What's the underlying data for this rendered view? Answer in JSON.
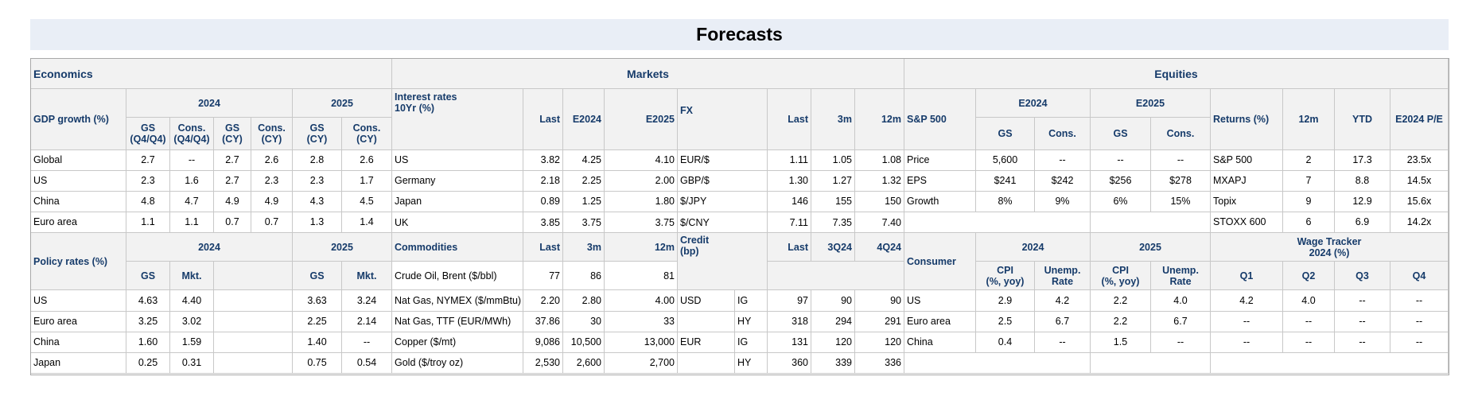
{
  "title": "Forecasts",
  "economics": {
    "section": "Economics",
    "gdp": {
      "label": "GDP growth (%)",
      "year1": "2024",
      "year2": "2025",
      "cols": [
        "GS\n(Q4/Q4)",
        "Cons.\n(Q4/Q4)",
        "GS\n(CY)",
        "Cons.\n(CY)",
        "GS\n(CY)",
        "Cons.\n(CY)"
      ],
      "rows": [
        {
          "name": "Global",
          "v": [
            "2.7",
            "--",
            "2.7",
            "2.6",
            "2.8",
            "2.6"
          ]
        },
        {
          "name": "US",
          "v": [
            "2.3",
            "1.6",
            "2.7",
            "2.3",
            "2.3",
            "1.7"
          ]
        },
        {
          "name": "China",
          "v": [
            "4.8",
            "4.7",
            "4.9",
            "4.9",
            "4.3",
            "4.5"
          ]
        },
        {
          "name": "Euro area",
          "v": [
            "1.1",
            "1.1",
            "0.7",
            "0.7",
            "1.3",
            "1.4"
          ]
        }
      ]
    },
    "policy": {
      "label": "Policy rates (%)",
      "year1": "2024",
      "year2": "2025",
      "cols": [
        "GS",
        "Mkt.",
        "GS",
        "Mkt."
      ],
      "rows": [
        {
          "name": "US",
          "v": [
            "4.63",
            "4.40",
            "3.63",
            "3.24"
          ]
        },
        {
          "name": "Euro area",
          "v": [
            "3.25",
            "3.02",
            "2.25",
            "2.14"
          ]
        },
        {
          "name": "China",
          "v": [
            "1.60",
            "1.59",
            "1.40",
            "--"
          ]
        },
        {
          "name": "Japan",
          "v": [
            "0.25",
            "0.31",
            "0.75",
            "0.54"
          ]
        }
      ]
    }
  },
  "markets": {
    "section": "Markets",
    "rates": {
      "label": "Interest rates\n10Yr (%)",
      "cols": [
        "Last",
        "E2024",
        "E2025"
      ],
      "rows": [
        {
          "name": "US",
          "v": [
            "3.82",
            "4.25",
            "4.10"
          ]
        },
        {
          "name": "Germany",
          "v": [
            "2.18",
            "2.25",
            "2.00"
          ]
        },
        {
          "name": "Japan",
          "v": [
            "0.89",
            "1.25",
            "1.80"
          ]
        },
        {
          "name": "UK",
          "v": [
            "3.85",
            "3.75",
            "3.75"
          ]
        }
      ]
    },
    "fx": {
      "label": "FX",
      "cols": [
        "Last",
        "3m",
        "12m"
      ],
      "rows": [
        {
          "name": "EUR/$",
          "v": [
            "1.11",
            "1.05",
            "1.08"
          ]
        },
        {
          "name": "GBP/$",
          "v": [
            "1.30",
            "1.27",
            "1.32"
          ]
        },
        {
          "name": "$/JPY",
          "v": [
            "146",
            "155",
            "150"
          ]
        },
        {
          "name": "$/CNY",
          "v": [
            "7.11",
            "7.35",
            "7.40"
          ]
        }
      ]
    },
    "commodities": {
      "label": "Commodities",
      "cols": [
        "Last",
        "3m",
        "12m"
      ],
      "rows": [
        {
          "name": "Crude Oil, Brent ($/bbl)",
          "v": [
            "77",
            "86",
            "81"
          ]
        },
        {
          "name": "Nat Gas, NYMEX ($/mmBtu)",
          "v": [
            "2.20",
            "2.80",
            "4.00"
          ]
        },
        {
          "name": "Nat Gas, TTF (EUR/MWh)",
          "v": [
            "37.86",
            "30",
            "33"
          ]
        },
        {
          "name": "Copper ($/mt)",
          "v": [
            "9,086",
            "10,500",
            "13,000"
          ]
        },
        {
          "name": "Gold ($/troy oz)",
          "v": [
            "2,530",
            "2,600",
            "2,700"
          ]
        }
      ]
    },
    "credit": {
      "label": "Credit\n(bp)",
      "cols": [
        "Last",
        "3Q24",
        "4Q24"
      ],
      "rows": [
        {
          "region": "USD",
          "grade": "IG",
          "v": [
            "97",
            "90",
            "90"
          ]
        },
        {
          "region": "",
          "grade": "HY",
          "v": [
            "318",
            "294",
            "291"
          ]
        },
        {
          "region": "EUR",
          "grade": "IG",
          "v": [
            "131",
            "120",
            "120"
          ]
        },
        {
          "region": "",
          "grade": "HY",
          "v": [
            "360",
            "339",
            "336"
          ]
        }
      ]
    }
  },
  "equities": {
    "section": "Equities",
    "sp500": {
      "label": "S&P 500",
      "year1": "E2024",
      "year2": "E2025",
      "cols": [
        "GS",
        "Cons.",
        "GS",
        "Cons."
      ],
      "rows": [
        {
          "name": "Price",
          "v": [
            "5,600",
            "--",
            "--",
            "--"
          ]
        },
        {
          "name": "EPS",
          "v": [
            "$241",
            "$242",
            "$256",
            "$278"
          ]
        },
        {
          "name": "Growth",
          "v": [
            "8%",
            "9%",
            "6%",
            "15%"
          ]
        }
      ]
    },
    "returns": {
      "label": "Returns (%)",
      "cols": [
        "12m",
        "YTD",
        "E2024 P/E"
      ],
      "rows": [
        {
          "name": "S&P 500",
          "v": [
            "2",
            "17.3",
            "23.5x"
          ]
        },
        {
          "name": "MXAPJ",
          "v": [
            "7",
            "8.8",
            "14.5x"
          ]
        },
        {
          "name": "Topix",
          "v": [
            "9",
            "12.9",
            "15.6x"
          ]
        },
        {
          "name": "STOXX 600",
          "v": [
            "6",
            "6.9",
            "14.2x"
          ]
        }
      ]
    },
    "consumer": {
      "label": "Consumer",
      "year1": "2024",
      "year2": "2025",
      "cols": [
        "CPI\n(%, yoy)",
        "Unemp.\nRate",
        "CPI\n(%, yoy)",
        "Unemp.\nRate"
      ],
      "rows": [
        {
          "name": "US",
          "v": [
            "2.9",
            "4.2",
            "2.2",
            "4.0"
          ]
        },
        {
          "name": "Euro area",
          "v": [
            "2.5",
            "6.7",
            "2.2",
            "6.7"
          ]
        },
        {
          "name": "China",
          "v": [
            "0.4",
            "--",
            "1.5",
            "--"
          ]
        }
      ]
    },
    "wage": {
      "label": "Wage Tracker\n2024 (%)",
      "cols": [
        "Q1",
        "Q2",
        "Q3",
        "Q4"
      ],
      "rows": [
        {
          "v": [
            "4.2",
            "4.0",
            "--",
            "--"
          ]
        },
        {
          "v": [
            "--",
            "--",
            "--",
            "--"
          ]
        },
        {
          "v": [
            "--",
            "--",
            "--",
            "--"
          ]
        }
      ]
    }
  }
}
